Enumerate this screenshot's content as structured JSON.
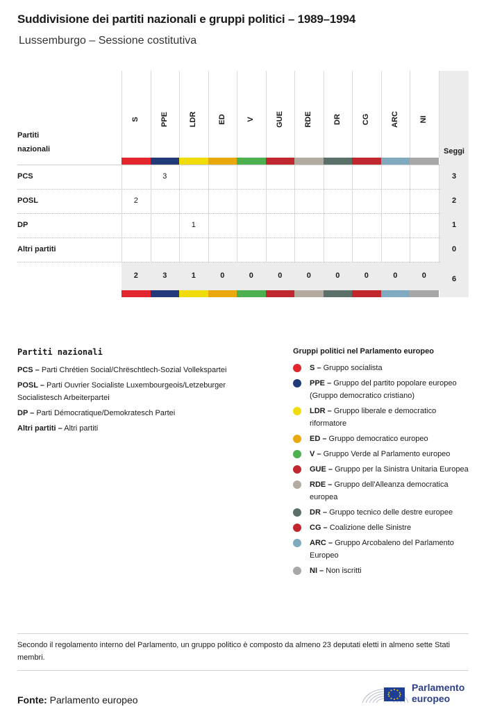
{
  "title": "Suddivisione dei partiti nazionali e gruppi politici – 1989–1994",
  "subtitle": "Lussemburgo – Sessione costitutiva",
  "table": {
    "row_header": [
      "Partiti",
      "nazionali"
    ],
    "seats_header": "Seggi"
  },
  "chart_data": {
    "type": "table",
    "groups": [
      {
        "abbr": "S",
        "color": "#e3262d"
      },
      {
        "abbr": "PPE",
        "color": "#233a7a"
      },
      {
        "abbr": "LDR",
        "color": "#f0dc0a"
      },
      {
        "abbr": "ED",
        "color": "#e8a80e"
      },
      {
        "abbr": "V",
        "color": "#4caf50"
      },
      {
        "abbr": "GUE",
        "color": "#c0262d"
      },
      {
        "abbr": "RDE",
        "color": "#b3aba0"
      },
      {
        "abbr": "DR",
        "color": "#5a7068"
      },
      {
        "abbr": "CG",
        "color": "#c1272d"
      },
      {
        "abbr": "ARC",
        "color": "#7faabf"
      },
      {
        "abbr": "NI",
        "color": "#a7a7a7"
      }
    ],
    "rows": [
      {
        "party": "PCS",
        "values": [
          "",
          "3",
          "",
          "",
          "",
          "",
          "",
          "",
          "",
          "",
          ""
        ],
        "seats": "3"
      },
      {
        "party": "POSL",
        "values": [
          "2",
          "",
          "",
          "",
          "",
          "",
          "",
          "",
          "",
          "",
          ""
        ],
        "seats": "2"
      },
      {
        "party": "DP",
        "values": [
          "",
          "",
          "1",
          "",
          "",
          "",
          "",
          "",
          "",
          "",
          ""
        ],
        "seats": "1"
      },
      {
        "party": "Altri partiti",
        "values": [
          "",
          "",
          "",
          "",
          "",
          "",
          "",
          "",
          "",
          "",
          ""
        ],
        "seats": "0"
      }
    ],
    "totals": [
      "2",
      "3",
      "1",
      "0",
      "0",
      "0",
      "0",
      "0",
      "0",
      "0",
      "0"
    ],
    "total_seats": "6"
  },
  "legend_parties": {
    "title": "Partiti nazionali",
    "items": [
      {
        "abbr": "PCS –",
        "text": "Parti Chrétien Social/Chrëschtlech-Sozial Vollekspartei"
      },
      {
        "abbr": "POSL –",
        "text": "Parti Ouvrier Socialiste Luxembourgeois/Letzeburger Socialistesch Arbeiterpartei"
      },
      {
        "abbr": "DP –",
        "text": "Parti Démocratique/Demokratesch Partei"
      },
      {
        "abbr": "Altri partiti –",
        "text": "Altri partiti"
      }
    ]
  },
  "legend_groups": {
    "title": "Gruppi politici nel Parlamento europeo",
    "items": [
      {
        "abbr": "S –",
        "text": "Gruppo socialista",
        "color": "#e3262d"
      },
      {
        "abbr": "PPE –",
        "text": "Gruppo del partito popolare europeo (Gruppo democratico cristiano)",
        "color": "#233a7a"
      },
      {
        "abbr": "LDR –",
        "text": "Gruppo liberale e democratico riformatore",
        "color": "#f0dc0a"
      },
      {
        "abbr": "ED –",
        "text": "Gruppo democratico europeo",
        "color": "#e8a80e"
      },
      {
        "abbr": "V –",
        "text": "Gruppo Verde al Parlamento europeo",
        "color": "#4caf50"
      },
      {
        "abbr": "GUE –",
        "text": "Gruppo per la Sinistra Unitaria Europea",
        "color": "#c0262d"
      },
      {
        "abbr": "RDE –",
        "text": "Gruppo dell'Alleanza democratica europea",
        "color": "#b3aba0"
      },
      {
        "abbr": "DR –",
        "text": "Gruppo tecnico delle destre europee",
        "color": "#5a7068"
      },
      {
        "abbr": "CG –",
        "text": "Coalizione delle Sinistre",
        "color": "#c1272d"
      },
      {
        "abbr": "ARC –",
        "text": "Gruppo Arcobaleno del Parlamento Europeo",
        "color": "#7faabf"
      },
      {
        "abbr": "NI –",
        "text": "Non iscritti",
        "color": "#a7a7a7"
      }
    ]
  },
  "note": "Secondo il regolamento interno del Parlamento, un gruppo politico è composto da almeno 23 deputati eletti in almeno sette Stati membri.",
  "source": {
    "label": "Fonte:",
    "text": "Parlamento europeo"
  },
  "logo": {
    "line1": "Parlamento",
    "line2": "europeo",
    "icon": "european-parliament-logo"
  }
}
